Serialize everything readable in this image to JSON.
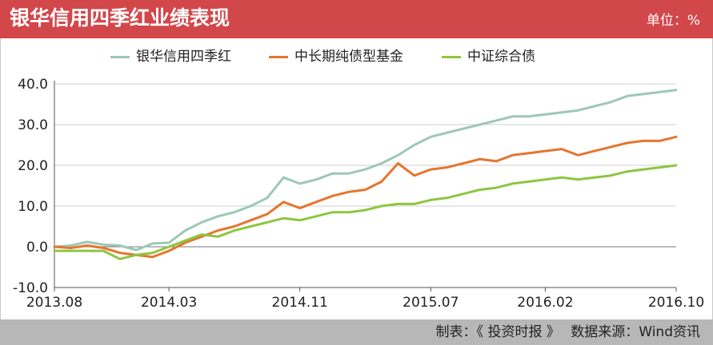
{
  "header": {
    "title": "银华信用四季红业绩表现",
    "unit": "单位：%"
  },
  "footer": {
    "maker": "制表：《 投资时报 》",
    "source": "数据来源：Wind资讯"
  },
  "colors": {
    "header_bg": "#d2474a",
    "footer_bg": "#b7b7b7",
    "series1": "#9cc8b6",
    "series2": "#e5752f",
    "series3": "#8cc63f"
  },
  "chart_data": {
    "type": "line",
    "ylim": [
      -10,
      40
    ],
    "yticks": [
      "40.0",
      "30.0",
      "20.0",
      "10.0",
      "0.0",
      "-10.0"
    ],
    "yticks_values": [
      40,
      30,
      20,
      10,
      0,
      -10
    ],
    "xlim": [
      "2013-08",
      "2016-10"
    ],
    "xticks": [
      "2013.08",
      "2014.03",
      "2014.11",
      "2015.07",
      "2016.02",
      "2016.10"
    ],
    "xticks_values": [
      "2013-08",
      "2014-03",
      "2014-11",
      "2015-07",
      "2016-02",
      "2016-10"
    ],
    "grid": true,
    "legend_position": "top",
    "series": [
      {
        "name": "银华信用四季红",
        "points": [
          [
            "2013-08",
            0.0
          ],
          [
            "2013-09",
            0.3
          ],
          [
            "2013-10",
            1.2
          ],
          [
            "2013-11",
            0.5
          ],
          [
            "2013-12",
            0.3
          ],
          [
            "2014-01",
            -0.8
          ],
          [
            "2014-02",
            0.8
          ],
          [
            "2014-03",
            1.0
          ],
          [
            "2014-04",
            4.0
          ],
          [
            "2014-05",
            6.0
          ],
          [
            "2014-06",
            7.5
          ],
          [
            "2014-07",
            8.5
          ],
          [
            "2014-08",
            10.0
          ],
          [
            "2014-09",
            12.0
          ],
          [
            "2014-10",
            17.0
          ],
          [
            "2014-11",
            15.5
          ],
          [
            "2014-12",
            16.5
          ],
          [
            "2015-01",
            18.0
          ],
          [
            "2015-02",
            18.0
          ],
          [
            "2015-03",
            19.0
          ],
          [
            "2015-04",
            20.5
          ],
          [
            "2015-05",
            22.5
          ],
          [
            "2015-06",
            25.0
          ],
          [
            "2015-07",
            27.0
          ],
          [
            "2015-08",
            28.0
          ],
          [
            "2015-09",
            29.0
          ],
          [
            "2015-10",
            30.0
          ],
          [
            "2015-11",
            31.0
          ],
          [
            "2015-12",
            32.0
          ],
          [
            "2016-01",
            32.0
          ],
          [
            "2016-02",
            32.5
          ],
          [
            "2016-03",
            33.0
          ],
          [
            "2016-04",
            33.5
          ],
          [
            "2016-05",
            34.5
          ],
          [
            "2016-06",
            35.5
          ],
          [
            "2016-07",
            37.0
          ],
          [
            "2016-08",
            37.5
          ],
          [
            "2016-09",
            38.0
          ],
          [
            "2016-10",
            38.5
          ]
        ]
      },
      {
        "name": "中长期纯债型基金",
        "points": [
          [
            "2013-08",
            0.0
          ],
          [
            "2013-09",
            -0.3
          ],
          [
            "2013-10",
            0.3
          ],
          [
            "2013-11",
            -0.3
          ],
          [
            "2013-12",
            -1.5
          ],
          [
            "2014-01",
            -2.0
          ],
          [
            "2014-02",
            -2.5
          ],
          [
            "2014-03",
            -1.0
          ],
          [
            "2014-04",
            1.0
          ],
          [
            "2014-05",
            2.5
          ],
          [
            "2014-06",
            4.0
          ],
          [
            "2014-07",
            5.0
          ],
          [
            "2014-08",
            6.5
          ],
          [
            "2014-09",
            8.0
          ],
          [
            "2014-10",
            11.0
          ],
          [
            "2014-11",
            9.5
          ],
          [
            "2014-12",
            11.0
          ],
          [
            "2015-01",
            12.5
          ],
          [
            "2015-02",
            13.5
          ],
          [
            "2015-03",
            14.0
          ],
          [
            "2015-04",
            16.0
          ],
          [
            "2015-05",
            20.5
          ],
          [
            "2015-06",
            17.5
          ],
          [
            "2015-07",
            19.0
          ],
          [
            "2015-08",
            19.5
          ],
          [
            "2015-09",
            20.5
          ],
          [
            "2015-10",
            21.5
          ],
          [
            "2015-11",
            21.0
          ],
          [
            "2015-12",
            22.5
          ],
          [
            "2016-01",
            23.0
          ],
          [
            "2016-02",
            23.5
          ],
          [
            "2016-03",
            24.0
          ],
          [
            "2016-04",
            22.5
          ],
          [
            "2016-05",
            23.5
          ],
          [
            "2016-06",
            24.5
          ],
          [
            "2016-07",
            25.5
          ],
          [
            "2016-08",
            26.0
          ],
          [
            "2016-09",
            26.0
          ],
          [
            "2016-10",
            27.0
          ]
        ]
      },
      {
        "name": "中证综合债",
        "points": [
          [
            "2013-08",
            -1.0
          ],
          [
            "2013-09",
            -1.0
          ],
          [
            "2013-10",
            -1.0
          ],
          [
            "2013-11",
            -1.0
          ],
          [
            "2013-12",
            -3.0
          ],
          [
            "2014-01",
            -2.0
          ],
          [
            "2014-02",
            -1.5
          ],
          [
            "2014-03",
            0.0
          ],
          [
            "2014-04",
            1.5
          ],
          [
            "2014-05",
            3.0
          ],
          [
            "2014-06",
            2.5
          ],
          [
            "2014-07",
            4.0
          ],
          [
            "2014-08",
            5.0
          ],
          [
            "2014-09",
            6.0
          ],
          [
            "2014-10",
            7.0
          ],
          [
            "2014-11",
            6.5
          ],
          [
            "2014-12",
            7.5
          ],
          [
            "2015-01",
            8.5
          ],
          [
            "2015-02",
            8.5
          ],
          [
            "2015-03",
            9.0
          ],
          [
            "2015-04",
            10.0
          ],
          [
            "2015-05",
            10.5
          ],
          [
            "2015-06",
            10.5
          ],
          [
            "2015-07",
            11.5
          ],
          [
            "2015-08",
            12.0
          ],
          [
            "2015-09",
            13.0
          ],
          [
            "2015-10",
            14.0
          ],
          [
            "2015-11",
            14.5
          ],
          [
            "2015-12",
            15.5
          ],
          [
            "2016-01",
            16.0
          ],
          [
            "2016-02",
            16.5
          ],
          [
            "2016-03",
            17.0
          ],
          [
            "2016-04",
            16.5
          ],
          [
            "2016-05",
            17.0
          ],
          [
            "2016-06",
            17.5
          ],
          [
            "2016-07",
            18.5
          ],
          [
            "2016-08",
            19.0
          ],
          [
            "2016-09",
            19.5
          ],
          [
            "2016-10",
            20.0
          ]
        ]
      }
    ]
  }
}
